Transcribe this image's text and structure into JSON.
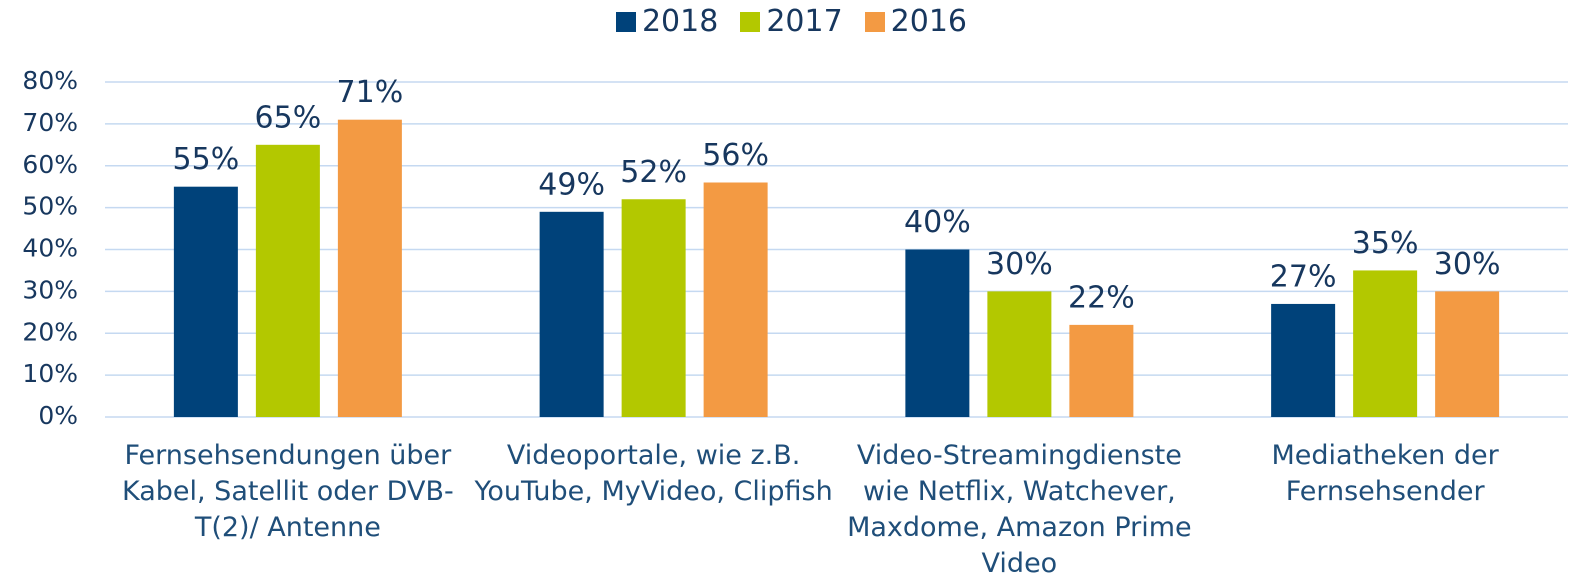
{
  "chart_data": {
    "type": "bar",
    "categories": [
      "Fernsehsendungen über Kabel, Satellit oder DVB-T(2)/ Antenne",
      "Videoportale, wie z.B. YouTube, MyVideo, Clipfish",
      "Video-Streamingdienste wie Netflix, Watchever, Maxdome, Amazon Prime Video",
      "Mediatheken der Fernsehsender"
    ],
    "series": [
      {
        "name": "2018",
        "color": "#00427a",
        "values": [
          55,
          49,
          40,
          27
        ],
        "value_labels": [
          "55%",
          "49%",
          "40%",
          "27%"
        ]
      },
      {
        "name": "2017",
        "color": "#b3c800",
        "values": [
          65,
          52,
          30,
          35
        ],
        "value_labels": [
          "65%",
          "52%",
          "30%",
          "35%"
        ]
      },
      {
        "name": "2016",
        "color": "#f39a43",
        "values": [
          71,
          56,
          22,
          30
        ],
        "value_labels": [
          "71%",
          "56%",
          "22%",
          "30%"
        ]
      }
    ],
    "ylim": [
      0,
      80
    ],
    "yticks": [
      {
        "value": 0,
        "label": "0%"
      },
      {
        "value": 10,
        "label": "10%"
      },
      {
        "value": 20,
        "label": "20%"
      },
      {
        "value": 30,
        "label": "30%"
      },
      {
        "value": 40,
        "label": "40%"
      },
      {
        "value": 50,
        "label": "50%"
      },
      {
        "value": 60,
        "label": "60%"
      },
      {
        "value": 70,
        "label": "70%"
      },
      {
        "value": 80,
        "label": "80%"
      }
    ],
    "grid": true,
    "legend": "top"
  }
}
